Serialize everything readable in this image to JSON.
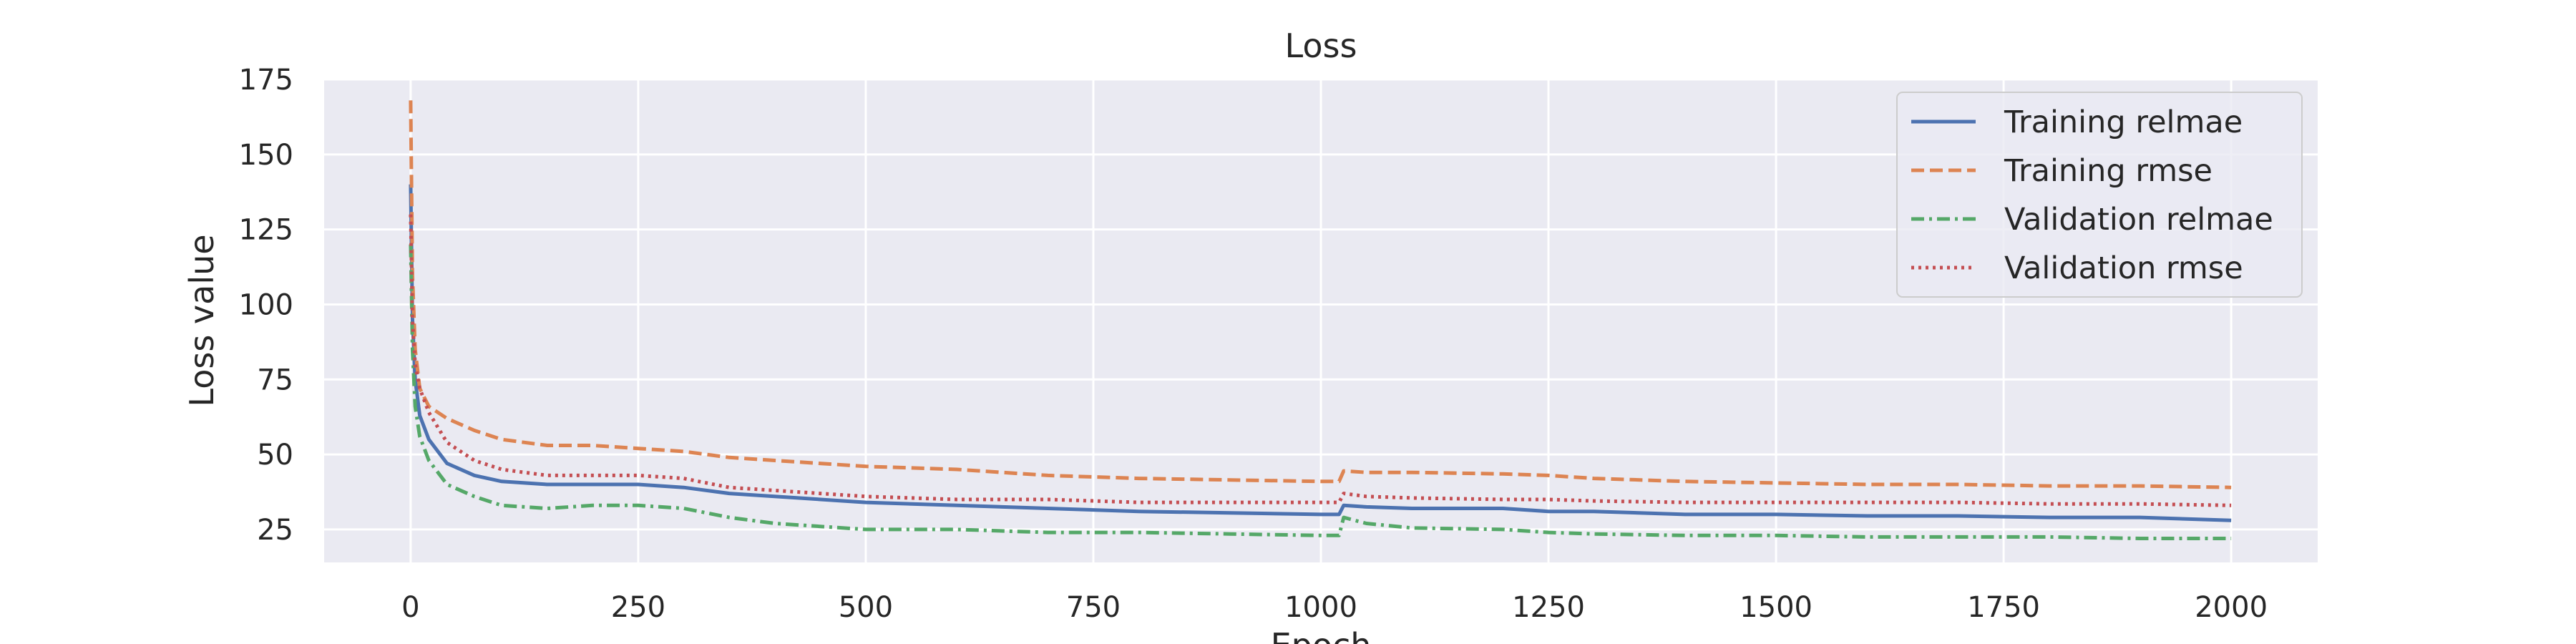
{
  "chart_data": {
    "type": "line",
    "title": "Loss",
    "xlabel": "Epoch",
    "ylabel": "Loss value",
    "xlim": [
      -95,
      2095
    ],
    "ylim": [
      14,
      175
    ],
    "xticks": [
      0,
      250,
      500,
      750,
      1000,
      1250,
      1500,
      1750,
      2000
    ],
    "yticks": [
      25,
      50,
      75,
      100,
      125,
      150,
      175
    ],
    "grid": true,
    "legend_position": "top-right",
    "series": [
      {
        "name": "Training relmae",
        "color": "#4c72b0",
        "style": "solid",
        "x": [
          0,
          2,
          5,
          10,
          20,
          40,
          70,
          100,
          150,
          200,
          250,
          300,
          350,
          400,
          500,
          600,
          700,
          800,
          900,
          1000,
          1020,
          1025,
          1050,
          1100,
          1200,
          1250,
          1300,
          1400,
          1500,
          1600,
          1700,
          1800,
          1900,
          2000
        ],
        "y": [
          140,
          95,
          75,
          63,
          55,
          47,
          43,
          41,
          40,
          40,
          40,
          39,
          37,
          36,
          34,
          33,
          32,
          31,
          30.5,
          30,
          30,
          33,
          32.5,
          32,
          32,
          31,
          31,
          30,
          30,
          29.5,
          29.5,
          29,
          29,
          28
        ]
      },
      {
        "name": "Training rmse",
        "color": "#dd8452",
        "style": "dashed",
        "x": [
          0,
          2,
          5,
          10,
          20,
          40,
          70,
          100,
          150,
          200,
          250,
          300,
          350,
          400,
          500,
          600,
          700,
          800,
          900,
          1000,
          1020,
          1025,
          1050,
          1100,
          1200,
          1250,
          1300,
          1400,
          1500,
          1600,
          1700,
          1800,
          1900,
          2000
        ],
        "y": [
          168,
          110,
          85,
          72,
          66,
          62,
          58,
          55,
          53,
          53,
          52,
          51,
          49,
          48,
          46,
          45,
          43,
          42,
          41.5,
          41,
          41,
          44.5,
          44,
          44,
          43.5,
          43,
          42,
          41,
          40.5,
          40,
          40,
          39.5,
          39.5,
          39
        ]
      },
      {
        "name": "Validation relmae",
        "color": "#55a868",
        "style": "dashdot",
        "x": [
          0,
          2,
          5,
          10,
          20,
          40,
          70,
          100,
          150,
          200,
          250,
          300,
          350,
          400,
          500,
          600,
          700,
          800,
          900,
          1000,
          1020,
          1025,
          1050,
          1100,
          1200,
          1250,
          1300,
          1400,
          1500,
          1600,
          1700,
          1800,
          1900,
          2000
        ],
        "y": [
          120,
          85,
          66,
          56,
          48,
          40,
          36,
          33,
          32,
          33,
          33,
          32,
          29,
          27,
          25,
          25,
          24,
          24,
          23.5,
          23,
          23,
          29,
          27,
          25.5,
          25,
          24,
          23.5,
          23,
          23,
          22.5,
          22.5,
          22.5,
          22,
          22
        ]
      },
      {
        "name": "Validation rmse",
        "color": "#c44e52",
        "style": "dotted",
        "x": [
          0,
          2,
          5,
          10,
          20,
          40,
          70,
          100,
          150,
          200,
          250,
          300,
          350,
          400,
          500,
          600,
          700,
          800,
          900,
          1000,
          1020,
          1025,
          1050,
          1100,
          1200,
          1250,
          1300,
          1400,
          1500,
          1600,
          1700,
          1800,
          1900,
          2000
        ],
        "y": [
          130,
          95,
          80,
          72,
          64,
          54,
          48,
          45,
          43,
          43,
          43,
          42,
          39,
          38,
          36,
          35,
          35,
          34,
          34,
          34,
          34,
          37,
          36,
          35.5,
          35,
          35,
          34.5,
          34,
          34,
          34,
          34,
          33.5,
          33.5,
          33
        ]
      }
    ]
  }
}
